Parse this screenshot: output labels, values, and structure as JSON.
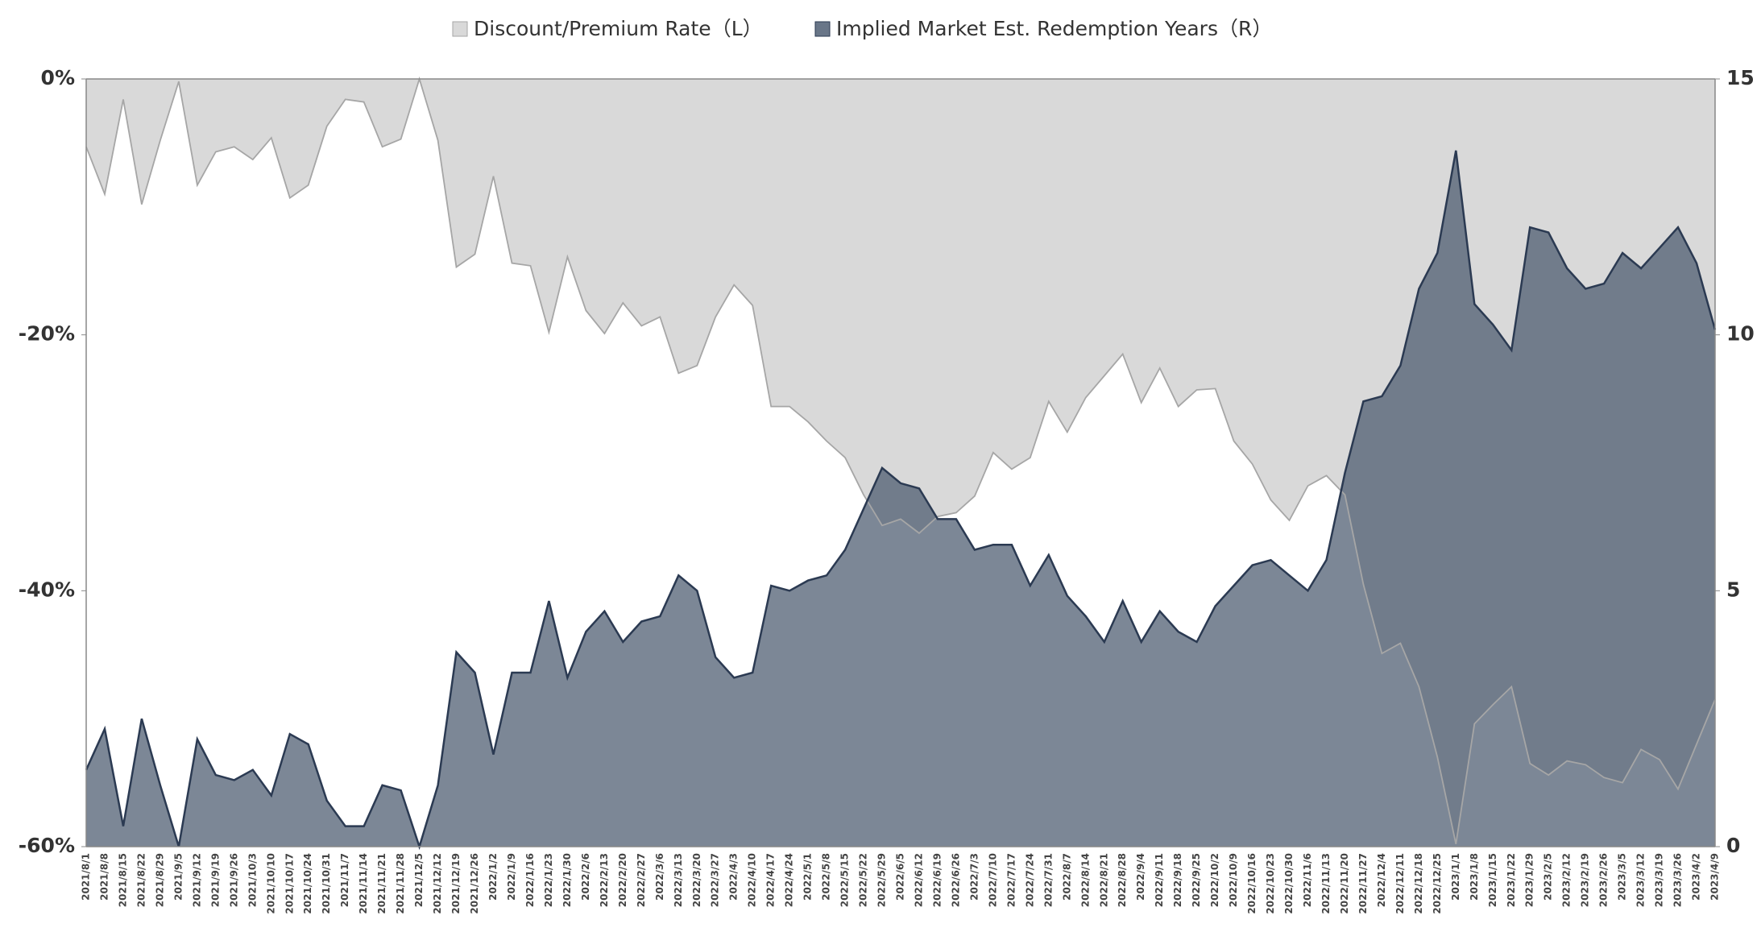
{
  "chart_data": {
    "type": "area",
    "categories": [
      "2021/8/1",
      "2021/8/8",
      "2021/8/15",
      "2021/8/22",
      "2021/8/29",
      "2021/9/5",
      "2021/9/12",
      "2021/9/19",
      "2021/9/26",
      "2021/10/3",
      "2021/10/10",
      "2021/10/17",
      "2021/10/24",
      "2021/10/31",
      "2021/11/7",
      "2021/11/14",
      "2021/11/21",
      "2021/11/28",
      "2021/12/5",
      "2021/12/12",
      "2021/12/19",
      "2021/12/26",
      "2022/1/2",
      "2022/1/9",
      "2022/1/16",
      "2022/1/23",
      "2022/1/30",
      "2022/2/6",
      "2022/2/13",
      "2022/2/20",
      "2022/2/27",
      "2022/3/6",
      "2022/3/13",
      "2022/3/20",
      "2022/3/27",
      "2022/4/3",
      "2022/4/10",
      "2022/4/17",
      "2022/4/24",
      "2022/5/1",
      "2022/5/8",
      "2022/5/15",
      "2022/5/22",
      "2022/5/29",
      "2022/6/5",
      "2022/6/12",
      "2022/6/19",
      "2022/6/26",
      "2022/7/3",
      "2022/7/10",
      "2022/7/17",
      "2022/7/24",
      "2022/7/31",
      "2022/8/7",
      "2022/8/14",
      "2022/8/21",
      "2022/8/28",
      "2022/9/4",
      "2022/9/11",
      "2022/9/18",
      "2022/9/25",
      "2022/10/2",
      "2022/10/9",
      "2022/10/16",
      "2022/10/23",
      "2022/10/30",
      "2022/11/6",
      "2022/11/13",
      "2022/11/20",
      "2022/11/27",
      "2022/12/4",
      "2022/12/11",
      "2022/12/18",
      "2022/12/25",
      "2023/1/1",
      "2023/1/8",
      "2023/1/15",
      "2023/1/22",
      "2023/1/29",
      "2023/2/5",
      "2023/2/12",
      "2023/2/19",
      "2023/2/26",
      "2023/3/5",
      "2023/3/12",
      "2023/3/19",
      "2023/3/26",
      "2023/4/2",
      "2023/4/9"
    ],
    "series": [
      {
        "name": "Discount/Premium Rate（L）",
        "color": "#d9d9d9",
        "line_color": "#a6a6a6",
        "axis": "y",
        "values": [
          -5.3,
          -9,
          -1.6,
          -9.8,
          -4.8,
          -0.2,
          -8.3,
          -5.7,
          -5.3,
          -6.3,
          -4.6,
          -9.3,
          -8.3,
          -3.7,
          -1.6,
          -1.8,
          -5.3,
          -4.7,
          0,
          -4.8,
          -14.7,
          -13.7,
          -7.6,
          -14.4,
          -14.6,
          -19.8,
          -13.9,
          -18.1,
          -19.9,
          -17.5,
          -19.3,
          -18.6,
          -23,
          -22.4,
          -18.6,
          -16.1,
          -17.7,
          -25.6,
          -25.6,
          -26.8,
          -28.3,
          -29.6,
          -32.5,
          -34.9,
          -34.4,
          -35.5,
          -34.2,
          -33.9,
          -32.6,
          -29.2,
          -30.5,
          -29.6,
          -25.2,
          -27.6,
          -24.9,
          -23.2,
          -21.5,
          -25.3,
          -22.6,
          -25.6,
          -24.3,
          -24.2,
          -28.3,
          -30.1,
          -32.9,
          -34.5,
          -31.8,
          -31,
          -32.5,
          -39.5,
          -44.9,
          -44.1,
          -47.5,
          -53,
          -59.8,
          -50.4,
          -48.9,
          -47.5,
          -53.5,
          -54.4,
          -53.3,
          -53.6,
          -54.6,
          -55,
          -52.4,
          -53.2,
          -55.5,
          -52,
          -48.5
        ]
      },
      {
        "name": "Implied Market Est. Redemption Years（R）",
        "color": "#44546a",
        "line_color": "#2b3a52",
        "axis": "y2",
        "values": [
          1.5,
          2.3,
          0.4,
          2.5,
          1.2,
          0,
          2.1,
          1.4,
          1.3,
          1.5,
          1,
          2.2,
          2,
          0.9,
          0.4,
          0.4,
          1.2,
          1.1,
          0,
          1.2,
          3.8,
          3.4,
          1.8,
          3.4,
          3.4,
          4.8,
          3.3,
          4.2,
          4.6,
          4,
          4.4,
          4.5,
          5.3,
          5,
          3.7,
          3.3,
          3.4,
          5.1,
          5,
          5.2,
          5.3,
          5.8,
          6.6,
          7.4,
          7.1,
          7,
          6.4,
          6.4,
          5.8,
          5.9,
          5.9,
          5.1,
          5.7,
          4.9,
          4.5,
          4,
          4.8,
          4,
          4.6,
          4.2,
          4,
          4.7,
          5.1,
          5.5,
          5.6,
          5.3,
          5,
          5.6,
          7.3,
          8.7,
          8.8,
          9.4,
          10.9,
          11.6,
          13.6,
          10.6,
          10.2,
          9.7,
          12.1,
          12,
          11.3,
          10.9,
          11,
          11.6,
          11.3,
          11.7,
          12.1,
          11.4,
          10.1
        ]
      }
    ],
    "ylim": [
      -60,
      0
    ],
    "yticks": [
      {
        "value": 0,
        "label": "0%"
      },
      {
        "value": -20,
        "label": "-20%"
      },
      {
        "value": -40,
        "label": "-40%"
      },
      {
        "value": -60,
        "label": "-60%"
      }
    ],
    "y2lim": [
      0,
      15
    ],
    "y2ticks": [
      0,
      5,
      10,
      15
    ],
    "grid": false,
    "legend": "top"
  }
}
